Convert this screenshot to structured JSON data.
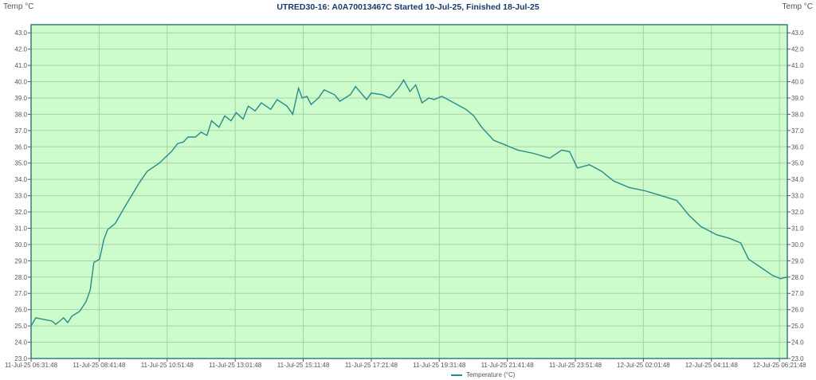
{
  "chart_data": {
    "type": "line",
    "title": "UTRED30-16: A0A70013467C Started 10-Jul-25, Finished 18-Jul-25",
    "ylabel_left": "Temp °C",
    "ylabel_right": "Temp °C",
    "ylim": [
      23.0,
      43.5
    ],
    "yticks": [
      "23.0",
      "24.0",
      "25.0",
      "26.0",
      "27.0",
      "28.0",
      "29.0",
      "30.0",
      "31.0",
      "32.0",
      "33.0",
      "34.0",
      "35.0",
      "36.0",
      "37.0",
      "38.0",
      "39.0",
      "40.0",
      "41.0",
      "42.0",
      "43.0"
    ],
    "xlim_minutes": [
      0,
      1445
    ],
    "xtick_minutes": [
      0,
      130,
      260,
      390,
      520,
      650,
      780,
      910,
      1040,
      1170,
      1300,
      1430
    ],
    "xtick_labels": [
      "11-Jul-25 06:31:48",
      "11-Jul-25 08:41:48",
      "11-Jul-25 10:51:48",
      "11-Jul-25 13:01:48",
      "11-Jul-25 15:11:48",
      "11-Jul-25 17:21:48",
      "11-Jul-25 19:31:48",
      "11-Jul-25 21:41:48",
      "11-Jul-25 23:51:48",
      "12-Jul-25 02:01:48",
      "12-Jul-25 04:11:48",
      "12-Jul-25 06:21:48"
    ],
    "grid": true,
    "legend_position": "bottom-center",
    "series": [
      {
        "name": "Temperature (°C)",
        "color": "#2a8a8a",
        "x_minutes": [
          0,
          9,
          24,
          40,
          47,
          55,
          62,
          70,
          78,
          93,
          105,
          113,
          120,
          131,
          139,
          146,
          161,
          177,
          192,
          207,
          222,
          245,
          268,
          280,
          291,
          300,
          314,
          325,
          336,
          345,
          359,
          370,
          382,
          392,
          405,
          415,
          428,
          440,
          458,
          470,
          489,
          500,
          511,
          518,
          527,
          535,
          549,
          560,
          580,
          590,
          610,
          620,
          641,
          650,
          671,
          685,
          702,
          712,
          724,
          735,
          747,
          760,
          770,
          785,
          808,
          831,
          846,
          861,
          884,
          907,
          930,
          960,
          991,
          1014,
          1029,
          1044,
          1067,
          1090,
          1113,
          1143,
          1173,
          1204,
          1234,
          1257,
          1280,
          1310,
          1333,
          1356,
          1371,
          1394,
          1417,
          1432,
          1444
        ],
        "values": [
          25.0,
          25.5,
          25.4,
          25.3,
          25.1,
          25.3,
          25.5,
          25.2,
          25.6,
          25.9,
          26.5,
          27.2,
          28.9,
          29.1,
          30.3,
          30.9,
          31.3,
          32.2,
          33.0,
          33.8,
          34.5,
          35.0,
          35.7,
          36.2,
          36.3,
          36.6,
          36.6,
          36.9,
          36.7,
          37.6,
          37.2,
          37.9,
          37.6,
          38.1,
          37.7,
          38.5,
          38.2,
          38.7,
          38.3,
          38.9,
          38.5,
          38.0,
          39.6,
          39.0,
          39.1,
          38.6,
          39.0,
          39.5,
          39.2,
          38.8,
          39.2,
          39.7,
          38.9,
          39.3,
          39.2,
          39.0,
          39.6,
          40.1,
          39.4,
          39.8,
          38.7,
          39.0,
          38.9,
          39.1,
          38.7,
          38.3,
          37.9,
          37.2,
          36.4,
          36.1,
          35.8,
          35.6,
          35.3,
          35.8,
          35.7,
          34.7,
          34.9,
          34.5,
          33.9,
          33.5,
          33.3,
          33.0,
          32.7,
          31.8,
          31.1,
          30.6,
          30.4,
          30.1,
          29.1,
          28.6,
          28.1,
          27.9,
          28.0
        ]
      }
    ]
  }
}
